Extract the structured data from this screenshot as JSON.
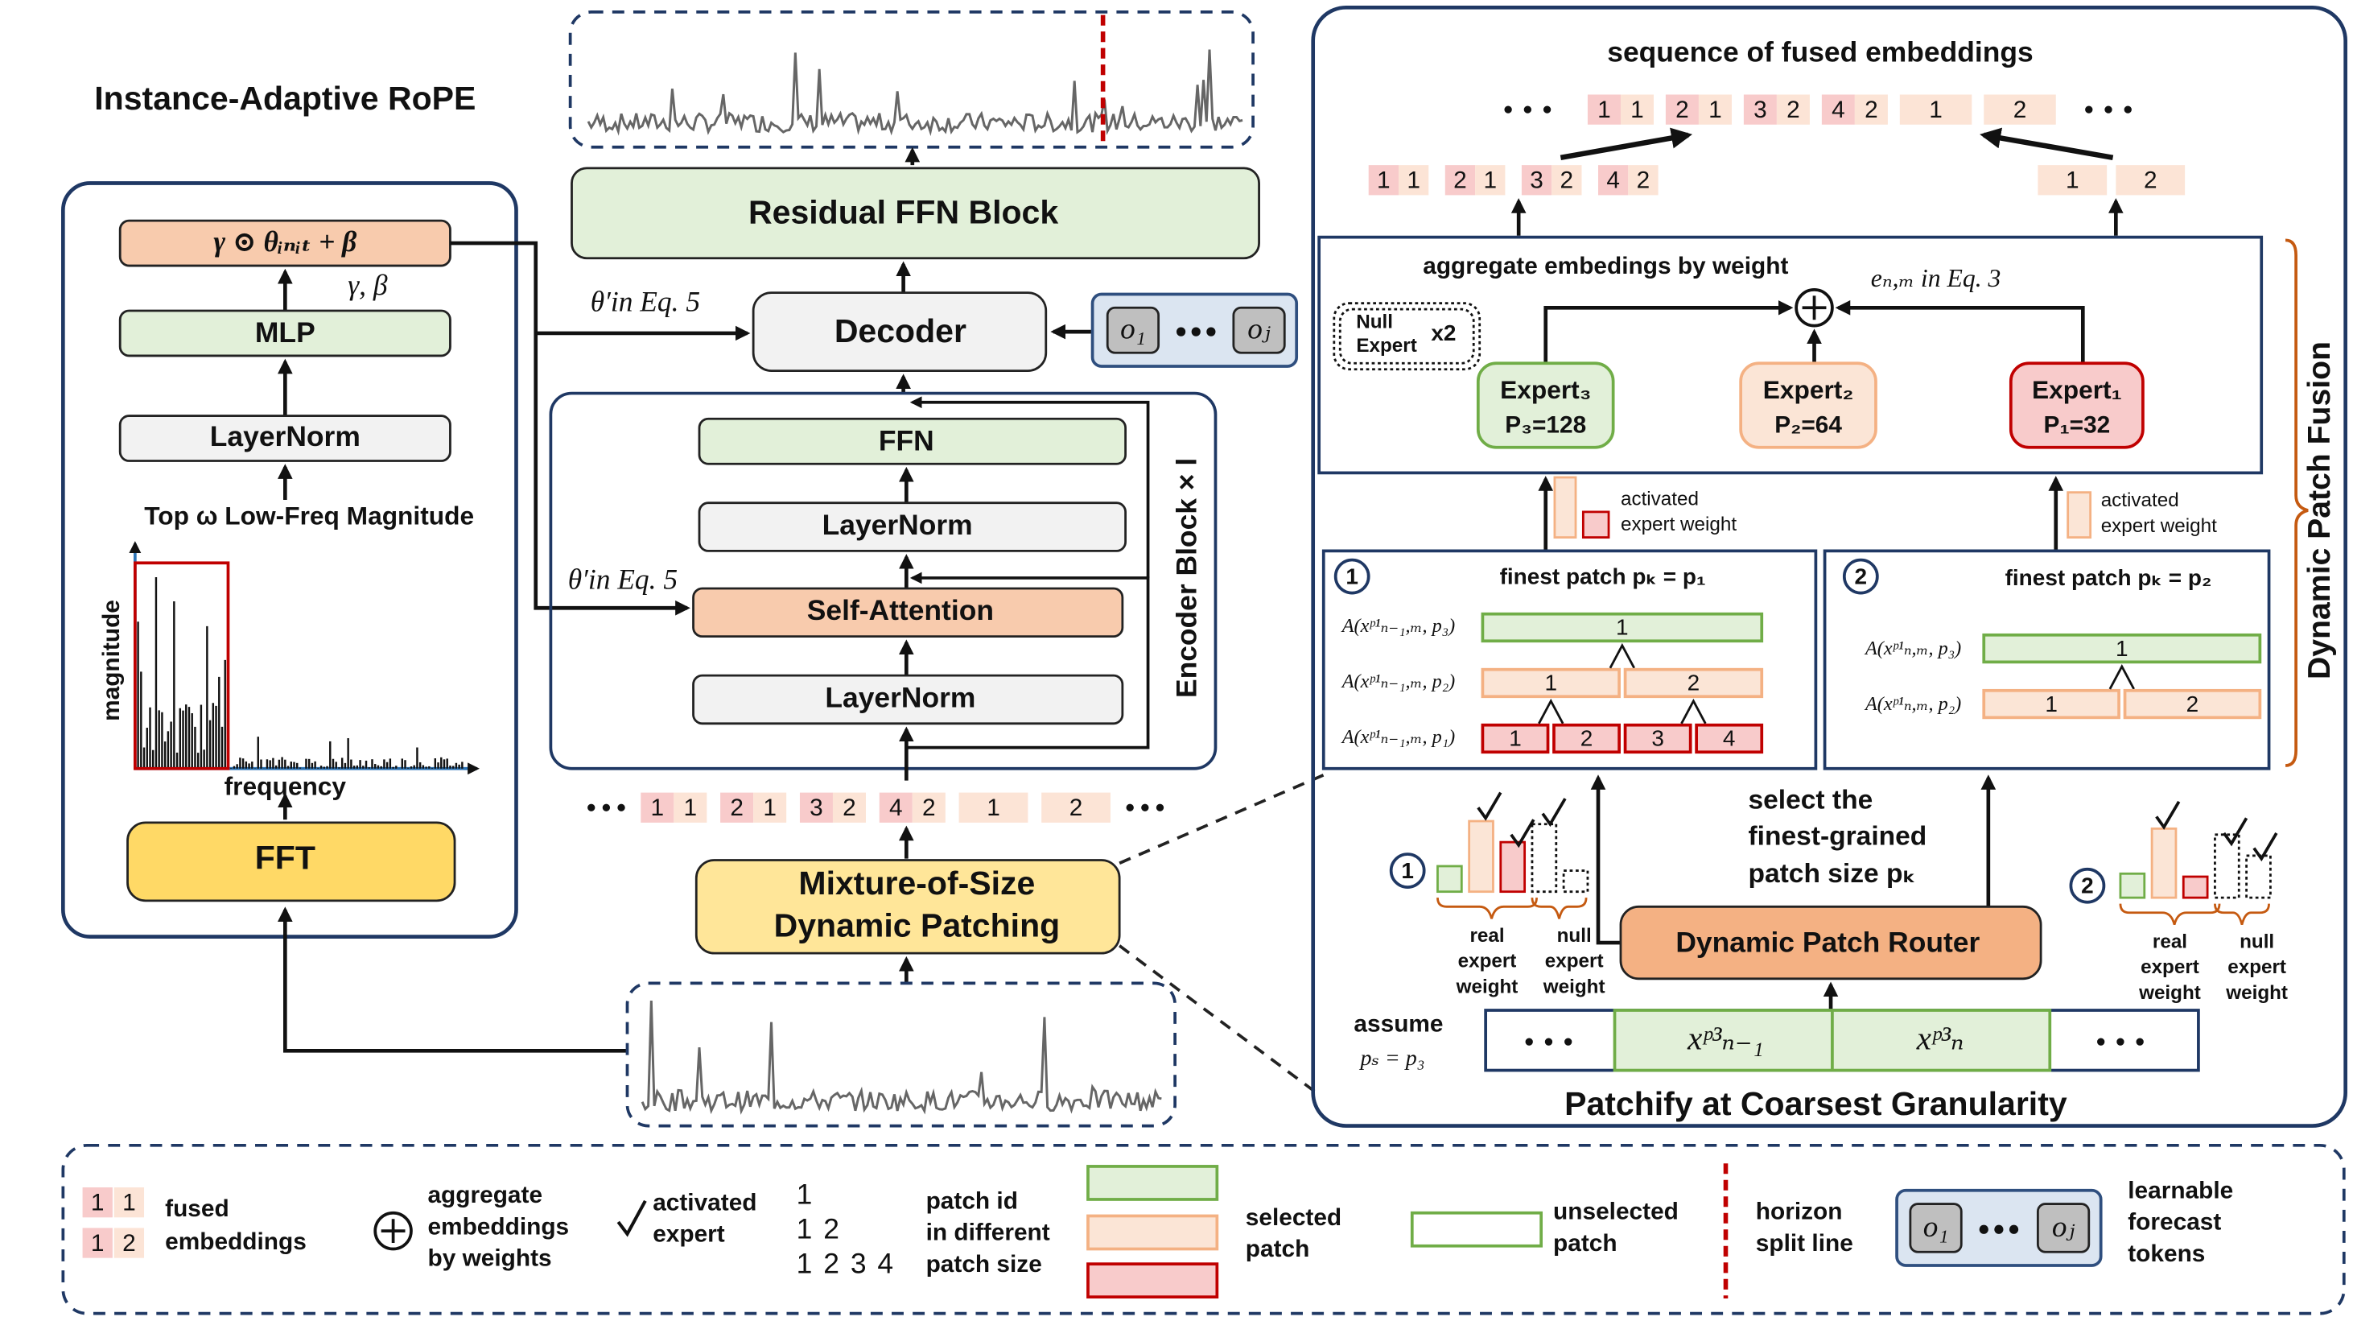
{
  "left_panel": {
    "title": "Instance-Adaptive RoPE",
    "formula": "γ ⊙ θᵢₙᵢₜ + β",
    "params": "γ, β",
    "mlp": "MLP",
    "layernorm": "LayerNorm",
    "input_label": "Top ω Low-Freq Magnitude",
    "y_axis": "magnitude",
    "x_axis": "frequency",
    "fft": "FFT"
  },
  "center": {
    "residual_ffn": "Residual FFN Block",
    "decoder": "Decoder",
    "decoder_rope": "θ′in Eq. 5",
    "attention_rope": "θ′in Eq. 5",
    "forecast_tokens": [
      "o₁",
      "oⱼ"
    ],
    "encoder": {
      "ffn": "FFN",
      "layernorm_upper": "LayerNorm",
      "self_attention": "Self-Attention",
      "layernorm_lower": "LayerNorm",
      "repeat_label": "Encoder Block × l"
    },
    "patch_tokens": [
      [
        "1",
        "1"
      ],
      [
        "2",
        "1"
      ],
      [
        "3",
        "2"
      ],
      [
        "4",
        "2"
      ],
      [
        "1"
      ],
      [
        "2"
      ]
    ],
    "patching": [
      "Mixture-of-Size",
      "Dynamic Patching"
    ]
  },
  "right_panel": {
    "title": "sequence of fused embeddings",
    "fused_tokens": [
      [
        "1",
        "1"
      ],
      [
        "2",
        "1"
      ],
      [
        "3",
        "2"
      ],
      [
        "4",
        "2"
      ],
      [
        "1"
      ],
      [
        "2"
      ]
    ],
    "branch_tokens_1": [
      [
        "1",
        "1"
      ],
      [
        "2",
        "1"
      ],
      [
        "3",
        "2"
      ],
      [
        "4",
        "2"
      ]
    ],
    "branch_tokens_2": [
      [
        "1"
      ],
      [
        "2"
      ]
    ],
    "aggregate_label": "aggregate embedings by weight",
    "null_expert": [
      "Null",
      "Expert"
    ],
    "null_expert_count": "x2",
    "embedding_label": "eₙ,ₘ in Eq. 3",
    "experts": [
      {
        "name": "Expert₃",
        "size": "P₃=128"
      },
      {
        "name": "Expert₂",
        "size": "P₂=64"
      },
      {
        "name": "Expert₁",
        "size": "P₁=32"
      }
    ],
    "weight_label_1": [
      "activated",
      "expert weight"
    ],
    "weight_label_2": [
      "activated",
      "expert weight"
    ],
    "fusion_label": "Dynamic Patch Fusion",
    "branches": [
      {
        "id": "1",
        "heading": "finest  patch pₖ = p₁",
        "rows": [
          {
            "label": "A(xᵖ¹ₙ₋₁,ₘ, p₃)",
            "patches": [
              "1"
            ]
          },
          {
            "label": "A(xᵖ¹ₙ₋₁,ₘ, p₂)",
            "patches": [
              "1",
              "2"
            ]
          },
          {
            "label": "A(xᵖ¹ₙ₋₁,ₘ, p₁)",
            "patches": [
              "1",
              "2",
              "3",
              "4"
            ]
          }
        ]
      },
      {
        "id": "2",
        "heading": "finest  patch pₖ = p₂",
        "rows": [
          {
            "label": "A(xᵖ¹ₙ,ₘ, p₃)",
            "patches": [
              "1"
            ]
          },
          {
            "label": "A(xᵖ¹ₙ,ₘ, p₂)",
            "patches": [
              "1",
              "2"
            ]
          }
        ]
      }
    ],
    "router_note": [
      "select the",
      "finest-grained",
      "patch size pₖ"
    ],
    "router": "Dynamic Patch Router",
    "routing_weights": [
      {
        "id": "1",
        "real_label": [
          "real",
          "expert",
          "weight"
        ],
        "null_label": [
          "null",
          "expert",
          "weight"
        ]
      },
      {
        "id": "2",
        "real_label": [
          "real",
          "expert",
          "weight"
        ],
        "null_label": [
          "null",
          "expert",
          "weight"
        ]
      }
    ],
    "assume": [
      "assume",
      "pₛ = p₃"
    ],
    "input_patches": [
      "xᵖ³ₙ₋₁",
      "xᵖ³ₙ"
    ],
    "footer": "Patchify at Coarsest Granularity"
  },
  "legend": {
    "fused": {
      "tokens": [
        [
          "1",
          "1"
        ],
        [
          "1",
          "2"
        ]
      ],
      "label": [
        "fused",
        "embeddings"
      ]
    },
    "aggregate": [
      "aggregate",
      "embeddings",
      "by weights"
    ],
    "activated": [
      "activated",
      "expert"
    ],
    "patch_ids": {
      "ids": [
        [
          "1"
        ],
        [
          "1",
          "2"
        ],
        [
          "1",
          "2",
          "3",
          "4"
        ]
      ],
      "label": [
        "patch id",
        "in different",
        "patch size"
      ]
    },
    "selected": [
      "selected",
      "patch"
    ],
    "unselected": [
      "unselected",
      "patch"
    ],
    "horizon": [
      "horizon",
      "split line"
    ],
    "forecast_tokens": [
      "o₁",
      "oⱼ"
    ],
    "learnable": [
      "learnable",
      "forecast",
      "tokens"
    ]
  }
}
